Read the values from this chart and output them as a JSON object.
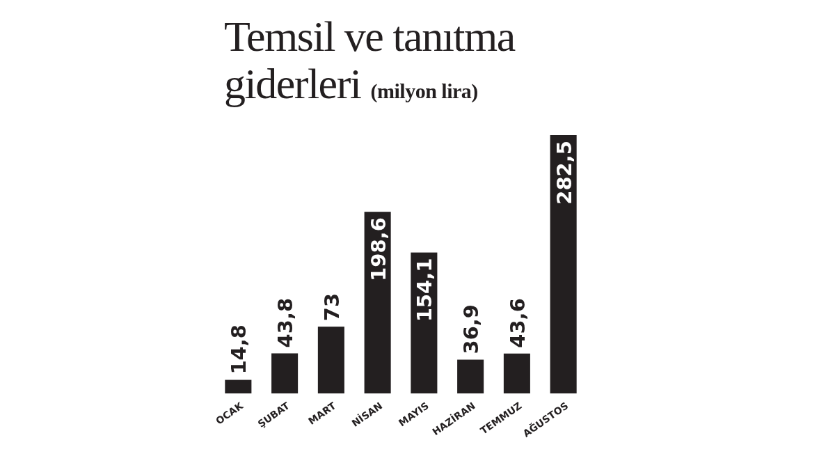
{
  "chart_data": {
    "type": "bar",
    "title": "Temsil ve tanıtma giderleri",
    "subtitle": "(milyon lira)",
    "categories": [
      "OCAK",
      "ŞUBAT",
      "MART",
      "NİSAN",
      "MAYIS",
      "HAZİRAN",
      "TEMMUZ",
      "AĞUSTOS"
    ],
    "values": [
      14.8,
      43.8,
      73,
      198.6,
      154.1,
      36.9,
      43.6,
      282.5
    ],
    "value_labels": [
      "14,8",
      "43,8",
      "73",
      "198,6",
      "154,1",
      "36,9",
      "43,6",
      "282,5"
    ],
    "color": "#231f20"
  }
}
